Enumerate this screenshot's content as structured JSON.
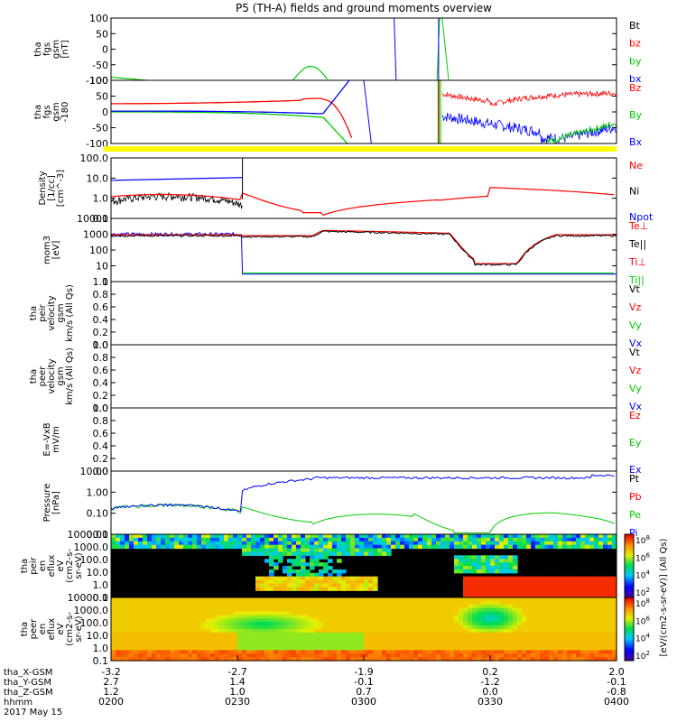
{
  "chart_data": {
    "type": "line",
    "title": "P5 (TH-A) fields and ground moments overview",
    "panels": [
      {
        "id": "fgs",
        "ylabel": [
          "tha",
          "fgs",
          "gsm",
          "[nT]"
        ],
        "ylim": [
          -100,
          100
        ],
        "ticks": [
          "100",
          "50",
          "0",
          "-50",
          "-100"
        ],
        "legend": [
          {
            "name": "Bt",
            "color": "#000000"
          },
          {
            "name": "bz",
            "color": "#ff0000"
          },
          {
            "name": "by",
            "color": "#00cc00"
          },
          {
            "name": "bx",
            "color": "#0000ff"
          }
        ]
      },
      {
        "id": "fge",
        "ylabel": [
          "tha",
          "fgs",
          "gsm",
          "-180"
        ],
        "ylim": [
          -120,
          120
        ],
        "ticks": [
          "100",
          "50",
          "0",
          "-50",
          "-100"
        ],
        "legend": [
          {
            "name": "Bz",
            "color": "#ff0000"
          },
          {
            "name": "By",
            "color": "#00cc00"
          },
          {
            "name": "Bx",
            "color": "#0000ff"
          }
        ]
      },
      {
        "id": "density",
        "ylabel": [
          "Density",
          "[1/cc]",
          "[cm^-3]"
        ],
        "ylim": [
          0.1,
          100
        ],
        "log": true,
        "ticks": [
          "100.0",
          "10.0",
          "1.0",
          "0.1"
        ],
        "legend": [
          {
            "name": "Ne",
            "color": "#ff0000"
          },
          {
            "name": "Ni",
            "color": "#000000"
          },
          {
            "name": "Npot",
            "color": "#0000ff"
          }
        ]
      },
      {
        "id": "temp",
        "ylabel": [
          "mom3",
          "[eV]"
        ],
        "ylim": [
          1,
          10000
        ],
        "log": true,
        "ticks": [
          "10000",
          "1000",
          "100",
          "10",
          "1"
        ],
        "legend": [
          {
            "name": "Te⊥",
            "color": "#ff0000"
          },
          {
            "name": "Te||",
            "color": "#000000"
          },
          {
            "name": "Ti⊥",
            "color": "#ff0000"
          },
          {
            "name": "Ti||",
            "color": "#00cc00"
          }
        ]
      },
      {
        "id": "pvel",
        "ylabel": [
          "tha",
          "peir",
          "velocity",
          "gsm",
          "km/s (All Qs)"
        ],
        "ylim": [
          0,
          1
        ],
        "ticks": [
          "1.0",
          "0.8",
          "0.6",
          "0.4",
          "0.2",
          "0.0"
        ],
        "legend": [
          {
            "name": "Vt",
            "color": "#000000"
          },
          {
            "name": "Vz",
            "color": "#ff0000"
          },
          {
            "name": "Vy",
            "color": "#00cc00"
          },
          {
            "name": "Vx",
            "color": "#0000ff"
          }
        ]
      },
      {
        "id": "evel",
        "ylabel": [
          "tha",
          "peer",
          "velocity",
          "gsm",
          "km/s (All Qs)"
        ],
        "ylim": [
          0,
          1
        ],
        "ticks": [
          "1.0",
          "0.8",
          "0.6",
          "0.4",
          "0.2",
          "0.0"
        ],
        "legend": [
          {
            "name": "Vt",
            "color": "#000000"
          },
          {
            "name": "Vz",
            "color": "#ff0000"
          },
          {
            "name": "Vy",
            "color": "#00cc00"
          },
          {
            "name": "Vx",
            "color": "#0000ff"
          }
        ]
      },
      {
        "id": "efield",
        "ylabel": [
          "E=-VxB",
          "mV/m"
        ],
        "ylim": [
          0,
          1
        ],
        "ticks": [
          "1.0",
          "0.8",
          "0.6",
          "0.4",
          "0.2",
          "0.0"
        ],
        "legend": [
          {
            "name": "Ez",
            "color": "#ff0000"
          },
          {
            "name": "Ey",
            "color": "#00cc00"
          },
          {
            "name": "Ex",
            "color": "#0000ff"
          }
        ]
      },
      {
        "id": "pressure",
        "ylabel": [
          "Pressure",
          "[nPa]"
        ],
        "ylim": [
          0.005,
          30
        ],
        "log": true,
        "ticks": [
          "10.00",
          "1.00",
          "0.10",
          "0.01"
        ],
        "legend": [
          {
            "name": "Pt",
            "color": "#000000"
          },
          {
            "name": "Pb",
            "color": "#ff0000"
          },
          {
            "name": "Pe",
            "color": "#00cc00"
          },
          {
            "name": "Pi",
            "color": "#0000ff"
          }
        ]
      },
      {
        "id": "ispec",
        "ylabel": [
          "tha",
          "peir",
          "en",
          "eflux",
          "eV",
          "(cm2-s-",
          "sr-eV)"
        ],
        "ticks": [
          "10000.0",
          "1000.0",
          "100.0",
          "10.0",
          "1.0",
          "0.1"
        ]
      },
      {
        "id": "espec",
        "ylabel": [
          "tha",
          "peer",
          "en",
          "eflux",
          "eV",
          "(cm2-s-",
          "sr-eV)"
        ],
        "ticks": [
          "10000.0",
          "1000.0",
          "100.0",
          "10.0",
          "1.0",
          "0.1"
        ]
      }
    ],
    "colorbar": {
      "label": "[eV/(cm2-s-sr-eV)] (All Qs)",
      "ticks": [
        "10^8",
        "10^6",
        "10^4",
        "10^2"
      ]
    },
    "ephemeris": {
      "labels": [
        "tha_X-GSM",
        "tha_Y-GSM",
        "tha_Z-GSM",
        "hhmm"
      ],
      "date": "2017 May 15",
      "columns": [
        {
          "vals": [
            "-3.2",
            "2.7",
            "1.2",
            "0200"
          ]
        },
        {
          "vals": [
            "-2.7",
            "1.4",
            "1.0",
            "0230"
          ]
        },
        {
          "vals": [
            "-1.9",
            "-0.1",
            "0.7",
            "0300"
          ]
        },
        {
          "vals": [
            "0.2",
            "-1.2",
            "0.0",
            "0330"
          ]
        },
        {
          "vals": [
            "2.0",
            "-0.1",
            "-0.8",
            "0400"
          ]
        }
      ]
    },
    "x_range": [
      "0200",
      "0400"
    ]
  }
}
